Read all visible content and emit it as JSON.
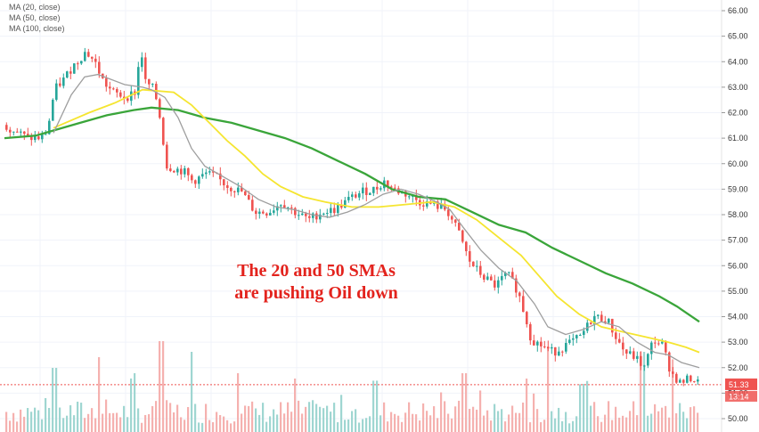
{
  "chart_data": {
    "type": "candlestick",
    "grid": true,
    "legend_position": "top-left",
    "legend": [
      {
        "label": "MA (20, close)",
        "color": "#9e9e9e"
      },
      {
        "label": "MA (50, close)",
        "color": "#f5e530"
      },
      {
        "label": "MA (100, close)",
        "color": "#3aa53a"
      }
    ],
    "annotation": [
      "The 20 and 50 SMAs",
      "are pushing Oil down"
    ],
    "ylim": [
      49.75,
      66.3
    ],
    "y_ticks": [
      "66.00",
      "65.00",
      "64.00",
      "63.00",
      "62.00",
      "61.00",
      "60.00",
      "59.00",
      "58.00",
      "57.00",
      "56.00",
      "55.00",
      "54.00",
      "53.00",
      "52.00",
      "51.00",
      "50.00"
    ],
    "current_price": "51.33",
    "countdown": "13:14",
    "colors": {
      "up": "#26a69a",
      "down": "#ef5350",
      "price_tag": "#ef5350",
      "countdown_tag": "#ef5350"
    },
    "price_anchors": [
      [
        0,
        61.6
      ],
      [
        15,
        61.3
      ],
      [
        30,
        61.0
      ],
      [
        45,
        61.0
      ],
      [
        52,
        61.3
      ],
      [
        60,
        62.9
      ],
      [
        70,
        63.3
      ],
      [
        80,
        63.8
      ],
      [
        95,
        64.4
      ],
      [
        105,
        64.0
      ],
      [
        115,
        63.2
      ],
      [
        125,
        62.8
      ],
      [
        140,
        62.6
      ],
      [
        150,
        62.8
      ],
      [
        157,
        64.5
      ],
      [
        162,
        63.2
      ],
      [
        172,
        62.9
      ],
      [
        180,
        61.5
      ],
      [
        185,
        59.9
      ],
      [
        195,
        59.8
      ],
      [
        205,
        59.7
      ],
      [
        215,
        59.3
      ],
      [
        230,
        59.6
      ],
      [
        240,
        59.5
      ],
      [
        255,
        59.1
      ],
      [
        270,
        58.9
      ],
      [
        285,
        58.1
      ],
      [
        300,
        58.1
      ],
      [
        315,
        58.5
      ],
      [
        330,
        58.1
      ],
      [
        345,
        57.8
      ],
      [
        360,
        58.1
      ],
      [
        375,
        58.2
      ],
      [
        390,
        58.6
      ],
      [
        405,
        58.9
      ],
      [
        420,
        59.0
      ],
      [
        430,
        59.3
      ],
      [
        440,
        59.0
      ],
      [
        455,
        58.8
      ],
      [
        470,
        58.5
      ],
      [
        485,
        58.4
      ],
      [
        500,
        58.2
      ],
      [
        515,
        57.2
      ],
      [
        525,
        56.2
      ],
      [
        540,
        55.6
      ],
      [
        555,
        55.2
      ],
      [
        568,
        55.7
      ],
      [
        580,
        55.0
      ],
      [
        590,
        53.8
      ],
      [
        595,
        53.1
      ],
      [
        605,
        52.9
      ],
      [
        620,
        52.6
      ],
      [
        635,
        52.9
      ],
      [
        650,
        53.2
      ],
      [
        665,
        54.0
      ],
      [
        680,
        53.9
      ],
      [
        690,
        53.2
      ],
      [
        700,
        52.6
      ],
      [
        712,
        52.4
      ],
      [
        722,
        52.0
      ],
      [
        732,
        53.1
      ],
      [
        742,
        52.9
      ],
      [
        752,
        51.8
      ],
      [
        762,
        51.4
      ],
      [
        775,
        51.6
      ],
      [
        785,
        51.33
      ]
    ],
    "sma20_anchors": [
      [
        60,
        61.2
      ],
      [
        80,
        62.7
      ],
      [
        95,
        63.4
      ],
      [
        110,
        63.5
      ],
      [
        140,
        63.1
      ],
      [
        160,
        63.0
      ],
      [
        170,
        62.9
      ],
      [
        185,
        62.6
      ],
      [
        200,
        61.8
      ],
      [
        215,
        60.6
      ],
      [
        230,
        59.9
      ],
      [
        250,
        59.5
      ],
      [
        270,
        59.1
      ],
      [
        290,
        58.6
      ],
      [
        310,
        58.3
      ],
      [
        330,
        58.2
      ],
      [
        350,
        58.0
      ],
      [
        370,
        57.9
      ],
      [
        390,
        58.1
      ],
      [
        410,
        58.4
      ],
      [
        430,
        58.8
      ],
      [
        450,
        59.0
      ],
      [
        470,
        58.8
      ],
      [
        490,
        58.5
      ],
      [
        505,
        58.2
      ],
      [
        520,
        57.5
      ],
      [
        540,
        56.6
      ],
      [
        560,
        55.9
      ],
      [
        580,
        55.4
      ],
      [
        600,
        54.5
      ],
      [
        615,
        53.6
      ],
      [
        635,
        53.3
      ],
      [
        655,
        53.5
      ],
      [
        675,
        53.8
      ],
      [
        695,
        53.6
      ],
      [
        715,
        53.0
      ],
      [
        735,
        52.6
      ],
      [
        750,
        52.5
      ],
      [
        765,
        52.2
      ],
      [
        785,
        52.0
      ]
    ],
    "sma50_anchors": [
      [
        60,
        61.4
      ],
      [
        100,
        62.0
      ],
      [
        130,
        62.4
      ],
      [
        160,
        62.9
      ],
      [
        195,
        62.8
      ],
      [
        215,
        62.3
      ],
      [
        235,
        61.6
      ],
      [
        255,
        60.9
      ],
      [
        275,
        60.3
      ],
      [
        295,
        59.6
      ],
      [
        315,
        59.1
      ],
      [
        340,
        58.7
      ],
      [
        365,
        58.5
      ],
      [
        395,
        58.3
      ],
      [
        425,
        58.3
      ],
      [
        455,
        58.4
      ],
      [
        485,
        58.5
      ],
      [
        510,
        58.3
      ],
      [
        535,
        57.8
      ],
      [
        560,
        57.1
      ],
      [
        585,
        56.4
      ],
      [
        605,
        55.6
      ],
      [
        625,
        54.8
      ],
      [
        650,
        54.1
      ],
      [
        675,
        53.6
      ],
      [
        700,
        53.4
      ],
      [
        725,
        53.2
      ],
      [
        750,
        53.0
      ],
      [
        770,
        52.8
      ],
      [
        785,
        52.6
      ]
    ],
    "sma100_anchors": [
      [
        5,
        61.0
      ],
      [
        40,
        61.1
      ],
      [
        60,
        61.3
      ],
      [
        90,
        61.6
      ],
      [
        120,
        61.9
      ],
      [
        150,
        62.1
      ],
      [
        170,
        62.2
      ],
      [
        200,
        62.1
      ],
      [
        230,
        61.8
      ],
      [
        260,
        61.6
      ],
      [
        290,
        61.3
      ],
      [
        320,
        61.0
      ],
      [
        350,
        60.6
      ],
      [
        380,
        60.1
      ],
      [
        410,
        59.6
      ],
      [
        440,
        59.0
      ],
      [
        470,
        58.7
      ],
      [
        500,
        58.6
      ],
      [
        530,
        58.1
      ],
      [
        560,
        57.6
      ],
      [
        590,
        57.3
      ],
      [
        620,
        56.7
      ],
      [
        650,
        56.2
      ],
      [
        680,
        55.7
      ],
      [
        710,
        55.3
      ],
      [
        740,
        54.8
      ],
      [
        760,
        54.4
      ],
      [
        785,
        53.8
      ]
    ],
    "volume_spikes": [
      [
        180,
        0.85
      ],
      [
        60,
        0.6
      ],
      [
        110,
        0.7
      ],
      [
        150,
        0.55
      ],
      [
        215,
        0.75
      ],
      [
        265,
        0.55
      ],
      [
        330,
        0.5
      ],
      [
        420,
        0.48
      ],
      [
        520,
        0.55
      ],
      [
        590,
        0.5
      ],
      [
        615,
        0.8
      ],
      [
        655,
        0.45
      ],
      [
        720,
        0.75
      ],
      [
        755,
        0.68
      ]
    ]
  }
}
